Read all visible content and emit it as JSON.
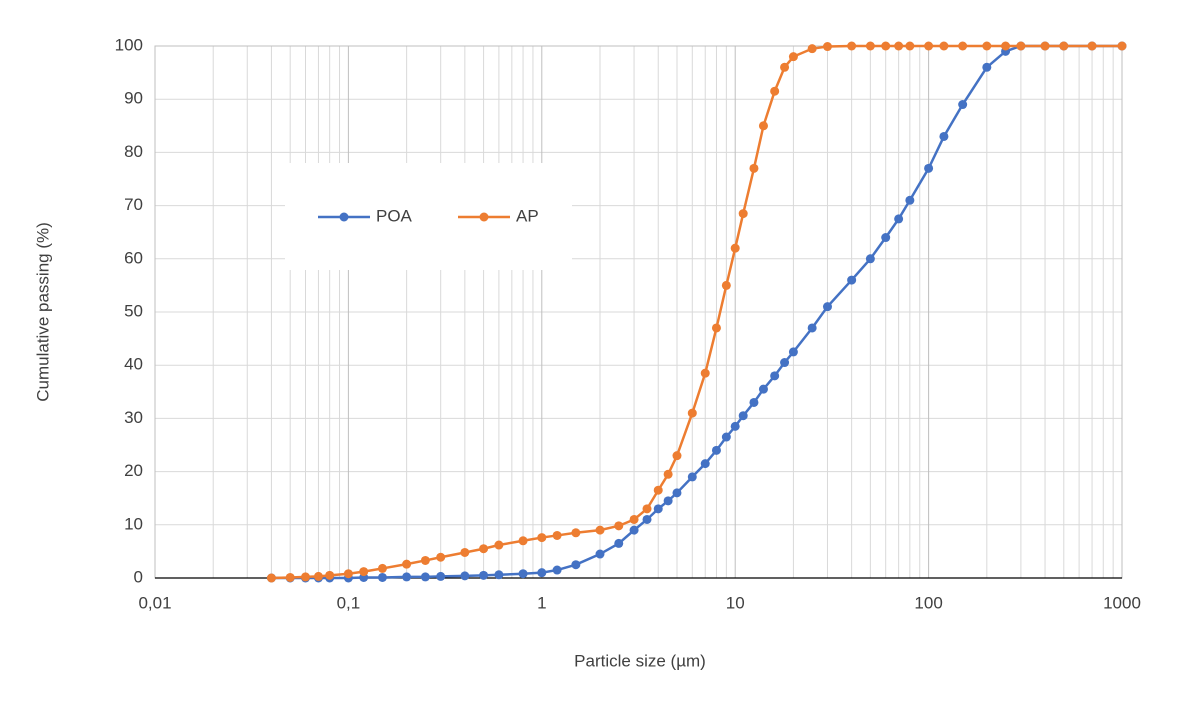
{
  "chart_data": {
    "type": "line",
    "x_label": "Particle size (µm)",
    "y_label": "Cumulative passing (%)",
    "x_scale": "log",
    "grid": true,
    "legend": "inside-top-left",
    "xlim": [
      0.01,
      1000
    ],
    "xticks": [
      {
        "value": 0.01,
        "label": "0,01"
      },
      {
        "value": 0.1,
        "label": "0,1"
      },
      1,
      10,
      100,
      1000
    ],
    "ylim": [
      0,
      100
    ],
    "yticks": [
      0,
      10,
      20,
      30,
      40,
      50,
      60,
      70,
      80,
      90,
      100
    ],
    "x": [
      0.04,
      0.05,
      0.06,
      0.07,
      0.08,
      0.1,
      0.12,
      0.15,
      0.2,
      0.25,
      0.3,
      0.4,
      0.5,
      0.6,
      0.8,
      1,
      1.2,
      1.5,
      2,
      2.5,
      3,
      3.5,
      4,
      4.5,
      5,
      6,
      7,
      8,
      9,
      10,
      11,
      12.5,
      14,
      16,
      18,
      20,
      25,
      30,
      40,
      50,
      60,
      70,
      80,
      100,
      120,
      150,
      200,
      250,
      300,
      400,
      500,
      700,
      1000
    ],
    "series": [
      {
        "name": "POA",
        "color": "#4472c4",
        "values": [
          0,
          0,
          0,
          0,
          0,
          0,
          0.1,
          0.1,
          0.2,
          0.2,
          0.3,
          0.4,
          0.5,
          0.6,
          0.8,
          1,
          1.5,
          2.5,
          4.5,
          6.5,
          9,
          11,
          13,
          14.5,
          16,
          19,
          21.5,
          24,
          26.5,
          28.5,
          30.5,
          33,
          35.5,
          38,
          40.5,
          42.5,
          47,
          51,
          56,
          60,
          64,
          67.5,
          71,
          77,
          83,
          89,
          96,
          99,
          100,
          100,
          100,
          100,
          100
        ]
      },
      {
        "name": "AP",
        "color": "#ed7d31",
        "values": [
          0,
          0.1,
          0.2,
          0.3,
          0.5,
          0.8,
          1.2,
          1.8,
          2.6,
          3.3,
          3.9,
          4.8,
          5.5,
          6.2,
          7,
          7.6,
          8,
          8.5,
          9,
          9.8,
          11,
          13,
          16.5,
          19.5,
          23,
          31,
          38.5,
          47,
          55,
          62,
          68.5,
          77,
          85,
          91.5,
          96,
          98,
          99.5,
          99.9,
          100,
          100,
          100,
          100,
          100,
          100,
          100,
          100,
          100,
          100,
          100,
          100,
          100,
          100,
          100
        ]
      }
    ]
  }
}
